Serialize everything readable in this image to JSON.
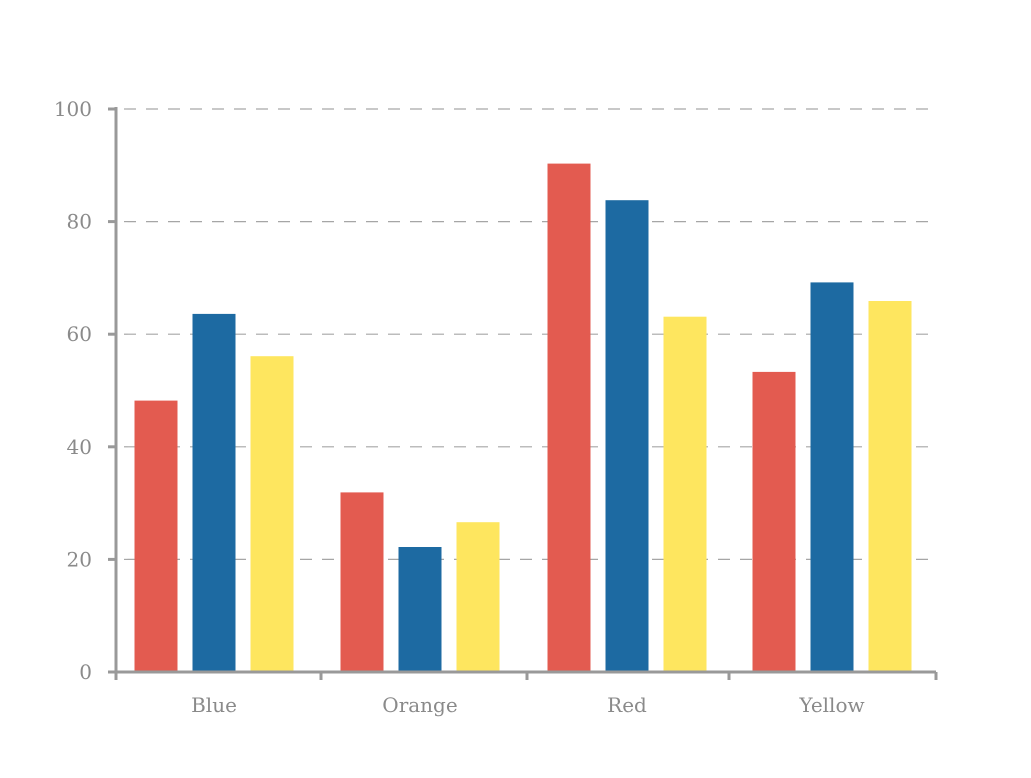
{
  "chart_data": {
    "type": "bar",
    "categories": [
      "Blue",
      "Orange",
      "Red",
      "Yellow"
    ],
    "series": [
      {
        "values": [
          48.2,
          31.9,
          90.3,
          53.3
        ],
        "color": "#e35b50"
      },
      {
        "values": [
          63.6,
          22.2,
          83.8,
          69.2
        ],
        "color": "#1d6aa2"
      },
      {
        "values": [
          56.1,
          26.6,
          63.1,
          65.9
        ],
        "color": "#fee65f"
      }
    ],
    "ylim": [
      0,
      100
    ],
    "yticks": [
      "0",
      "20",
      "40",
      "60",
      "80",
      "100"
    ],
    "title": "",
    "xlabel": "",
    "ylabel": "",
    "grid": true,
    "legend": "none"
  }
}
